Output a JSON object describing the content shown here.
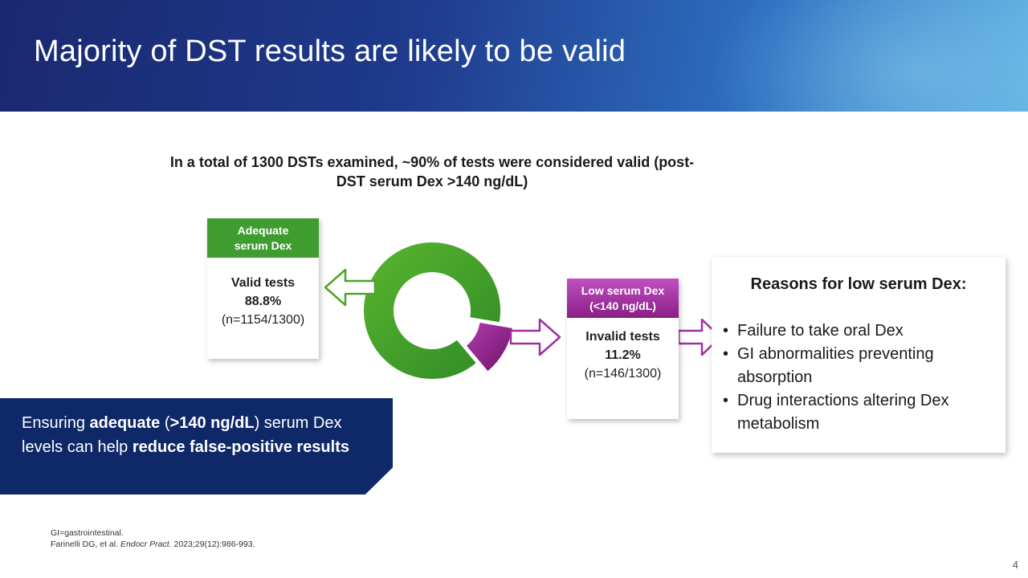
{
  "slide": {
    "title": "Majority of DST results are likely to be valid",
    "intro": "In a total of 1300 DSTs examined, ~90% of tests were considered valid (post-DST serum Dex >140 ng/dL)",
    "page_number": "4"
  },
  "valid_card": {
    "header_line1": "Adequate",
    "header_line2": "serum Dex",
    "label": "Valid tests",
    "percent": "88.8%",
    "count": "(n=1154/1300)",
    "color": "#3f9d2f"
  },
  "invalid_card": {
    "header_line1": "Low serum Dex",
    "header_line2": "(<140 ng/dL)",
    "label": "Invalid tests",
    "percent": "11.2%",
    "count": "(n=146/1300)",
    "color": "#9b2a99"
  },
  "reasons": {
    "title": "Reasons for low serum Dex:",
    "items": [
      "Failure to take oral Dex",
      "GI abnormalities preventing absorption",
      "Drug interactions altering Dex metabolism"
    ]
  },
  "callout": {
    "t1": "Ensuring ",
    "t2": "adequate",
    "t3": " (",
    "t4": ">140 ng/dL",
    "t5": ") serum Dex levels can help ",
    "t6": "reduce false-positive results"
  },
  "footnote": {
    "line1": "GI=gastrointestinal.",
    "line2_a": "Farinelli DG, et al. ",
    "line2_journal": "Endocr Pract.",
    "line2_b": " 2023;29(12):986-993."
  },
  "chart_data": {
    "type": "pie",
    "categories": [
      "Valid tests",
      "Invalid tests"
    ],
    "values": [
      88.8,
      11.2
    ],
    "colors": [
      "#4ea22f",
      "#8f228c"
    ]
  }
}
